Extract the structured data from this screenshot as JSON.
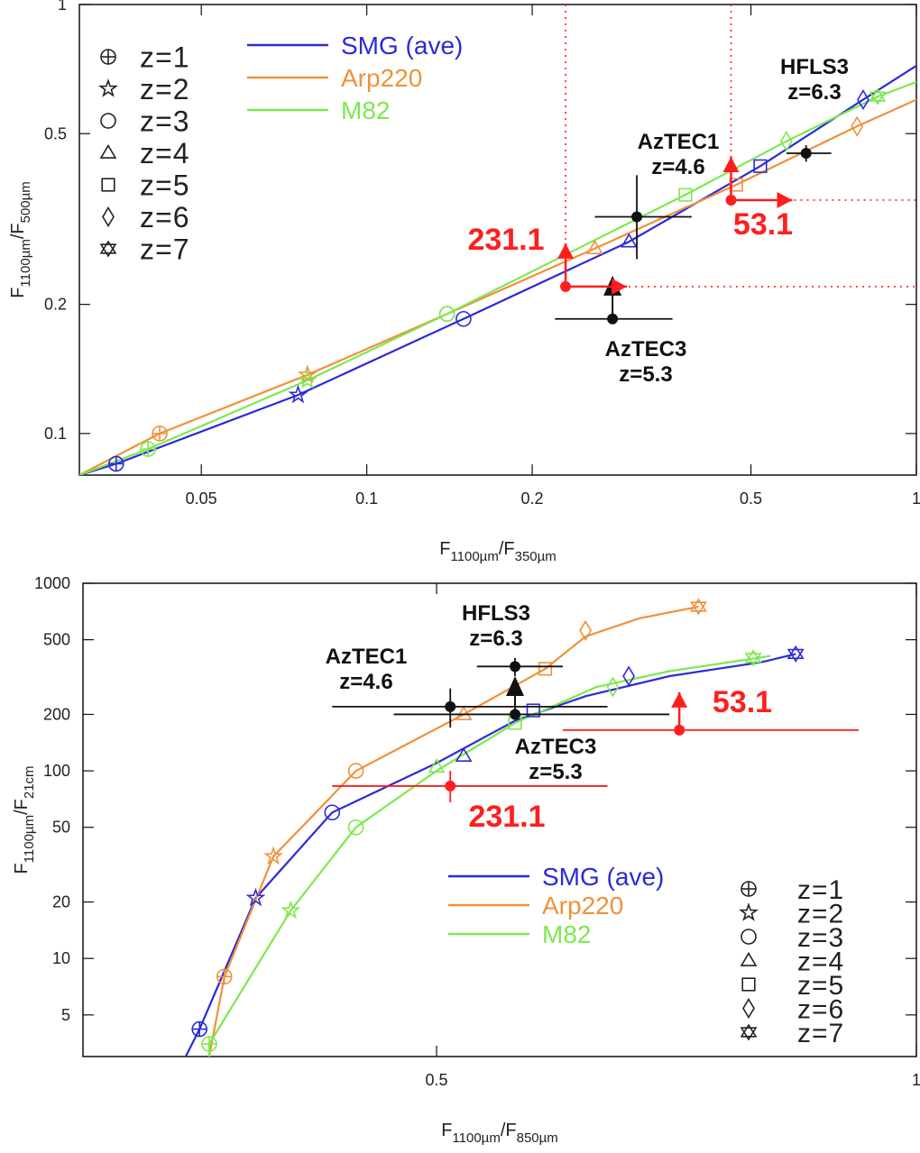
{
  "chart_data": [
    {
      "type": "line",
      "xscale": "log",
      "yscale": "log",
      "xlim": [
        0.03,
        1
      ],
      "ylim": [
        0.08,
        1
      ],
      "xticks": [
        0.05,
        0.1,
        0.2,
        0.5,
        1
      ],
      "yticks": [
        0.1,
        0.2,
        0.5,
        1
      ],
      "xtick_labels": [
        "0.05",
        "0.1",
        "0.2",
        "0.5",
        "1"
      ],
      "ytick_labels": [
        "0.1",
        "0.2",
        "0.5",
        "1"
      ],
      "xlabel": {
        "main": "F",
        "sub1": "1100µm",
        "slash": "/F",
        "sub2": "350µm"
      },
      "ylabel": {
        "main": "F",
        "sub1": "1100µm",
        "slash": "/F",
        "sub2": "500µm"
      },
      "series": [
        {
          "name": "SMG (ave)",
          "color": "#2b2bd6",
          "x": [
            0.03,
            0.035,
            0.075,
            0.15,
            0.3,
            0.52,
            0.8,
            1.0
          ],
          "y": [
            0.08,
            0.085,
            0.123,
            0.185,
            0.28,
            0.42,
            0.6,
            0.72
          ],
          "markers": [
            {
              "z": 1,
              "x": 0.035,
              "y": 0.085
            },
            {
              "z": 2,
              "x": 0.075,
              "y": 0.123
            },
            {
              "z": 3,
              "x": 0.15,
              "y": 0.185
            },
            {
              "z": 4,
              "x": 0.3,
              "y": 0.28
            },
            {
              "z": 5,
              "x": 0.52,
              "y": 0.42
            },
            {
              "z": 6,
              "x": 0.8,
              "y": 0.6
            }
          ]
        },
        {
          "name": "Arp220",
          "color": "#f0913a",
          "x": [
            0.03,
            0.042,
            0.078,
            0.14,
            0.26,
            0.47,
            0.78,
            1.0
          ],
          "y": [
            0.08,
            0.1,
            0.137,
            0.19,
            0.27,
            0.38,
            0.52,
            0.6
          ],
          "markers": [
            {
              "z": 1,
              "x": 0.042,
              "y": 0.1
            },
            {
              "z": 2,
              "x": 0.078,
              "y": 0.137
            },
            {
              "z": 3,
              "x": 0.14,
              "y": 0.19
            },
            {
              "z": 4,
              "x": 0.26,
              "y": 0.27
            },
            {
              "z": 5,
              "x": 0.47,
              "y": 0.38
            },
            {
              "z": 6,
              "x": 0.78,
              "y": 0.52
            }
          ]
        },
        {
          "name": "M82",
          "color": "#7de84f",
          "x": [
            0.03,
            0.04,
            0.078,
            0.14,
            0.38,
            0.58,
            0.85,
            1.0
          ],
          "y": [
            0.08,
            0.092,
            0.133,
            0.19,
            0.36,
            0.48,
            0.61,
            0.66
          ],
          "markers": [
            {
              "z": 1,
              "x": 0.04,
              "y": 0.092
            },
            {
              "z": 2,
              "x": 0.078,
              "y": 0.133
            },
            {
              "z": 3,
              "x": 0.14,
              "y": 0.19
            },
            {
              "z": 5,
              "x": 0.38,
              "y": 0.36
            },
            {
              "z": 6,
              "x": 0.58,
              "y": 0.48
            },
            {
              "z": 7,
              "x": 0.85,
              "y": 0.61
            }
          ]
        }
      ],
      "sources": [
        {
          "name": "AzTEC1",
          "zlabel": "z=4.6",
          "x": 0.31,
          "y": 0.32,
          "xerr": [
            0.26,
            0.39
          ],
          "yerr": [
            0.255,
            0.4
          ],
          "label_side": "upper-left"
        },
        {
          "name": "AzTEC3",
          "zlabel": "z=5.3",
          "x": 0.28,
          "y": 0.185,
          "xerr": [
            0.22,
            0.36
          ],
          "yerr": null,
          "label_side": "below",
          "upper_limit_arrow": true,
          "arrow_y": 0.22
        },
        {
          "name": "HFLS3",
          "zlabel": "z=6.3",
          "x": 0.63,
          "y": 0.45,
          "xerr": [
            0.58,
            0.7
          ],
          "yerr": [
            0.43,
            0.47
          ],
          "label_side": "above"
        }
      ],
      "limits": [
        {
          "name": "231.1",
          "x": 0.23,
          "y": 0.22,
          "color": "#ff1e1e",
          "label_side": "upper-left"
        },
        {
          "name": "53.1",
          "x": 0.46,
          "y": 0.35,
          "color": "#ff1e1e",
          "label_side": "below-right"
        }
      ],
      "legend": {
        "placement": "top-left",
        "lines_placement": "top-center"
      }
    },
    {
      "type": "line",
      "xscale": "log",
      "yscale": "log",
      "xlim": [
        0.3,
        1
      ],
      "ylim": [
        3,
        1000
      ],
      "xticks": [
        0.5,
        1
      ],
      "yticks": [
        5,
        10,
        20,
        50,
        100,
        200,
        500,
        1000
      ],
      "xtick_labels": [
        "0.5",
        "1"
      ],
      "ytick_labels": [
        "5",
        "10",
        "20",
        "50",
        "100",
        "200",
        "500",
        "1000"
      ],
      "xlabel": {
        "main": "F",
        "sub1": "1100µm",
        "slash": "/F",
        "sub2": "850µm"
      },
      "ylabel": {
        "main": "F",
        "sub1": "1100µm",
        "slash": "/F",
        "sub2": "21cm"
      },
      "series": [
        {
          "name": "SMG (ave)",
          "color": "#2b2bd6",
          "x": [
            0.348,
            0.355,
            0.385,
            0.43,
            0.5,
            0.56,
            0.62,
            0.7,
            0.8,
            0.84
          ],
          "y": [
            3,
            4.2,
            21,
            60,
            110,
            185,
            250,
            320,
            380,
            420
          ],
          "markers": [
            {
              "z": 1,
              "x": 0.355,
              "y": 4.2
            },
            {
              "z": 2,
              "x": 0.385,
              "y": 21
            },
            {
              "z": 3,
              "x": 0.43,
              "y": 60
            },
            {
              "z": 4,
              "x": 0.52,
              "y": 120
            },
            {
              "z": 5,
              "x": 0.575,
              "y": 210
            },
            {
              "z": 6,
              "x": 0.66,
              "y": 320
            },
            {
              "z": 7,
              "x": 0.84,
              "y": 420
            }
          ]
        },
        {
          "name": "Arp220",
          "color": "#f0913a",
          "x": [
            0.36,
            0.368,
            0.395,
            0.42,
            0.445,
            0.52,
            0.585,
            0.62,
            0.67,
            0.73
          ],
          "y": [
            3,
            8,
            35,
            60,
            100,
            200,
            350,
            520,
            650,
            750
          ],
          "markers": [
            {
              "z": 1,
              "x": 0.368,
              "y": 8
            },
            {
              "z": 2,
              "x": 0.395,
              "y": 35
            },
            {
              "z": 3,
              "x": 0.445,
              "y": 100
            },
            {
              "z": 4,
              "x": 0.52,
              "y": 200
            },
            {
              "z": 5,
              "x": 0.585,
              "y": 350
            },
            {
              "z": 6,
              "x": 0.62,
              "y": 560
            },
            {
              "z": 7,
              "x": 0.73,
              "y": 750
            }
          ]
        },
        {
          "name": "M82",
          "color": "#7de84f",
          "x": [
            0.36,
            0.36,
            0.405,
            0.445,
            0.5,
            0.56,
            0.63,
            0.7,
            0.78,
            0.81
          ],
          "y": [
            3,
            3.5,
            18,
            50,
            100,
            180,
            280,
            340,
            390,
            410
          ],
          "markers": [
            {
              "z": 1,
              "x": 0.36,
              "y": 3.5
            },
            {
              "z": 2,
              "x": 0.405,
              "y": 18
            },
            {
              "z": 3,
              "x": 0.445,
              "y": 50
            },
            {
              "z": 4,
              "x": 0.5,
              "y": 105
            },
            {
              "z": 5,
              "x": 0.56,
              "y": 180
            },
            {
              "z": 6,
              "x": 0.645,
              "y": 280
            },
            {
              "z": 7,
              "x": 0.79,
              "y": 400
            }
          ]
        }
      ],
      "sources": [
        {
          "name": "AzTEC1",
          "zlabel": "z=4.6",
          "x": 0.51,
          "y": 220,
          "xerr": [
            0.43,
            0.64
          ],
          "yerr": [
            170,
            275
          ],
          "label_side": "upper-left"
        },
        {
          "name": "AzTEC3",
          "zlabel": "z=5.3",
          "x": 0.56,
          "y": 200,
          "xerr": [
            0.47,
            0.7
          ],
          "yerr": null,
          "label_side": "below",
          "upper_limit_arrow": true,
          "arrow_y": 280
        },
        {
          "name": "HFLS3",
          "zlabel": "z=6.3",
          "x": 0.56,
          "y": 360,
          "xerr": [
            0.53,
            0.6
          ],
          "yerr": [
            320,
            400
          ],
          "label_side": "above"
        }
      ],
      "limits": [
        {
          "name": "231.1",
          "x": 0.51,
          "y": 83,
          "xerr": [
            0.43,
            0.64
          ],
          "yerr": [
            68,
            100
          ],
          "color": "#ff1e1e",
          "label_side": "below-right"
        },
        {
          "name": "53.1",
          "x": 0.71,
          "y": 165,
          "xerr": [
            0.6,
            0.92
          ],
          "color": "#ff1e1e",
          "label_side": "upper-right"
        }
      ],
      "legend": {
        "placement": "bottom-right",
        "lines_placement": "bottom-center"
      }
    }
  ],
  "legend_z": [
    "z=1",
    "z=2",
    "z=3",
    "z=4",
    "z=5",
    "z=6",
    "z=7"
  ]
}
